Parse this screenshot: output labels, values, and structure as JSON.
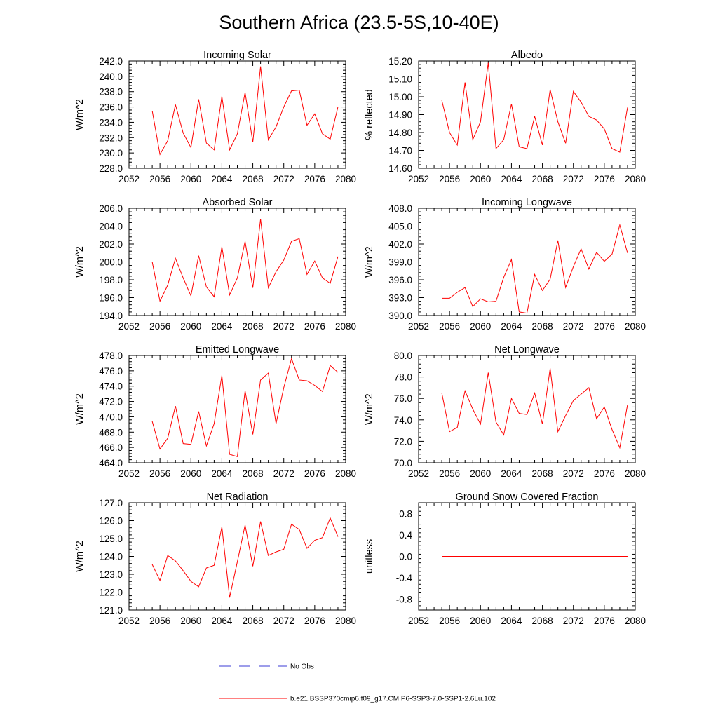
{
  "title": "Southern Africa (23.5-5S,10-40E)",
  "legend": {
    "obs_label": "No Obs",
    "obs_color": "#3b3bd6",
    "model_label": "b.e21.BSSP370cmip6.f09_g17.CMIP6-SSP3-7.0-SSP1-2.6Lu.102",
    "model_color": "#ff0000",
    "placement": "bottom-center"
  },
  "line_color": "#ff0000",
  "chart_data": [
    {
      "type": "line",
      "title": "Incoming Solar",
      "ylabel": "W/m^2",
      "xlim": [
        2052,
        2080
      ],
      "ylim": [
        228.0,
        242.0
      ],
      "xticks": [
        "2052",
        "2056",
        "2060",
        "2064",
        "2068",
        "2072",
        "2076",
        "2080"
      ],
      "yticks": [
        "228.0",
        "230.0",
        "232.0",
        "234.0",
        "236.0",
        "238.0",
        "240.0",
        "242.0"
      ],
      "x": [
        2055,
        2056,
        2057,
        2058,
        2059,
        2060,
        2061,
        2062,
        2063,
        2064,
        2065,
        2066,
        2067,
        2068,
        2069,
        2070,
        2071,
        2072,
        2073,
        2074,
        2075,
        2076,
        2077,
        2078,
        2079
      ],
      "y": [
        235.5,
        229.8,
        231.6,
        236.3,
        232.6,
        230.7,
        237.0,
        231.3,
        230.4,
        237.4,
        230.4,
        232.5,
        237.9,
        231.4,
        241.3,
        231.7,
        233.4,
        236.0,
        238.1,
        238.2,
        233.6,
        235.1,
        232.5,
        231.8,
        236.0
      ]
    },
    {
      "type": "line",
      "title": "Albedo",
      "ylabel": "% reflected",
      "xlim": [
        2052,
        2080
      ],
      "ylim": [
        14.6,
        15.2
      ],
      "xticks": [
        "2052",
        "2056",
        "2060",
        "2064",
        "2068",
        "2072",
        "2076",
        "2080"
      ],
      "yticks": [
        "14.60",
        "14.70",
        "14.80",
        "14.90",
        "15.00",
        "15.10",
        "15.20"
      ],
      "x": [
        2055,
        2056,
        2057,
        2058,
        2059,
        2060,
        2061,
        2062,
        2063,
        2064,
        2065,
        2066,
        2067,
        2068,
        2069,
        2070,
        2071,
        2072,
        2073,
        2074,
        2075,
        2076,
        2077,
        2078,
        2079
      ],
      "y": [
        14.98,
        14.8,
        14.73,
        15.08,
        14.76,
        14.86,
        15.19,
        14.71,
        14.76,
        14.96,
        14.72,
        14.71,
        14.89,
        14.73,
        15.04,
        14.86,
        14.74,
        15.03,
        14.97,
        14.89,
        14.87,
        14.82,
        14.71,
        14.69,
        14.94
      ]
    },
    {
      "type": "line",
      "title": "Absorbed Solar",
      "ylabel": "W/m^2",
      "xlim": [
        2052,
        2080
      ],
      "ylim": [
        194.0,
        206.0
      ],
      "xticks": [
        "2052",
        "2056",
        "2060",
        "2064",
        "2068",
        "2072",
        "2076",
        "2080"
      ],
      "yticks": [
        "194.0",
        "196.0",
        "198.0",
        "200.0",
        "202.0",
        "204.0",
        "206.0"
      ],
      "x": [
        2055,
        2056,
        2057,
        2058,
        2059,
        2060,
        2061,
        2062,
        2063,
        2064,
        2065,
        2066,
        2067,
        2068,
        2069,
        2070,
        2071,
        2072,
        2073,
        2074,
        2075,
        2076,
        2077,
        2078,
        2079
      ],
      "y": [
        200.0,
        195.6,
        197.4,
        200.4,
        198.2,
        196.2,
        200.7,
        197.2,
        196.1,
        201.7,
        196.3,
        198.2,
        202.3,
        197.1,
        204.8,
        197.1,
        198.9,
        200.2,
        202.3,
        202.6,
        198.6,
        200.1,
        198.2,
        197.6,
        200.6
      ]
    },
    {
      "type": "line",
      "title": "Incoming Longwave",
      "ylabel": "W/m^2",
      "xlim": [
        2052,
        2080
      ],
      "ylim": [
        390.0,
        408.0
      ],
      "xticks": [
        "2052",
        "2056",
        "2060",
        "2064",
        "2068",
        "2072",
        "2076",
        "2080"
      ],
      "yticks": [
        "390.0",
        "393.0",
        "396.0",
        "399.0",
        "402.0",
        "405.0",
        "408.0"
      ],
      "x": [
        2055,
        2056,
        2057,
        2058,
        2059,
        2060,
        2061,
        2062,
        2063,
        2064,
        2065,
        2066,
        2067,
        2068,
        2069,
        2070,
        2071,
        2072,
        2073,
        2074,
        2075,
        2076,
        2077,
        2078,
        2079
      ],
      "y": [
        392.9,
        392.9,
        393.9,
        394.7,
        391.5,
        392.8,
        392.3,
        392.4,
        396.4,
        399.4,
        390.6,
        390.4,
        396.9,
        394.2,
        396.1,
        402.6,
        394.7,
        398.2,
        401.2,
        397.8,
        400.6,
        399.1,
        400.3,
        405.2,
        400.5
      ]
    },
    {
      "type": "line",
      "title": "Emitted Longwave",
      "ylabel": "W/m^2",
      "xlim": [
        2052,
        2080
      ],
      "ylim": [
        464.0,
        478.0
      ],
      "xticks": [
        "2052",
        "2056",
        "2060",
        "2064",
        "2068",
        "2072",
        "2076",
        "2080"
      ],
      "yticks": [
        "464.0",
        "466.0",
        "468.0",
        "470.0",
        "472.0",
        "474.0",
        "476.0",
        "478.0"
      ],
      "x": [
        2055,
        2056,
        2057,
        2058,
        2059,
        2060,
        2061,
        2062,
        2063,
        2064,
        2065,
        2066,
        2067,
        2068,
        2069,
        2070,
        2071,
        2072,
        2073,
        2074,
        2075,
        2076,
        2077,
        2078,
        2079
      ],
      "y": [
        469.4,
        465.8,
        467.2,
        471.4,
        466.5,
        466.4,
        470.7,
        466.2,
        469.1,
        475.4,
        465.1,
        464.8,
        473.4,
        467.7,
        474.8,
        475.7,
        469.1,
        473.8,
        477.6,
        474.8,
        474.7,
        474.1,
        473.3,
        476.7,
        475.8
      ]
    },
    {
      "type": "line",
      "title": "Net Longwave",
      "ylabel": "W/m^2",
      "xlim": [
        2052,
        2080
      ],
      "ylim": [
        70.0,
        80.0
      ],
      "xticks": [
        "2052",
        "2056",
        "2060",
        "2064",
        "2068",
        "2072",
        "2076",
        "2080"
      ],
      "yticks": [
        "70.0",
        "72.0",
        "74.0",
        "76.0",
        "78.0",
        "80.0"
      ],
      "x": [
        2055,
        2056,
        2057,
        2058,
        2059,
        2060,
        2061,
        2062,
        2063,
        2064,
        2065,
        2066,
        2067,
        2068,
        2069,
        2070,
        2071,
        2072,
        2073,
        2074,
        2075,
        2076,
        2077,
        2078,
        2079
      ],
      "y": [
        76.5,
        72.9,
        73.3,
        76.7,
        75.0,
        73.6,
        78.4,
        73.8,
        72.6,
        76.0,
        74.6,
        74.5,
        76.5,
        73.6,
        78.8,
        72.9,
        74.4,
        75.8,
        76.4,
        77.0,
        74.1,
        75.2,
        73.1,
        71.4,
        75.4
      ]
    },
    {
      "type": "line",
      "title": "Net Radiation",
      "ylabel": "W/m^2",
      "xlim": [
        2052,
        2080
      ],
      "ylim": [
        121.0,
        127.0
      ],
      "xticks": [
        "2052",
        "2056",
        "2060",
        "2064",
        "2068",
        "2072",
        "2076",
        "2080"
      ],
      "yticks": [
        "121.0",
        "122.0",
        "123.0",
        "124.0",
        "125.0",
        "126.0",
        "127.0"
      ],
      "x": [
        2055,
        2056,
        2057,
        2058,
        2059,
        2060,
        2061,
        2062,
        2063,
        2064,
        2065,
        2066,
        2067,
        2068,
        2069,
        2070,
        2071,
        2072,
        2073,
        2074,
        2075,
        2076,
        2077,
        2078,
        2079
      ],
      "y": [
        123.55,
        122.65,
        124.05,
        123.75,
        123.2,
        122.6,
        122.3,
        123.35,
        123.5,
        125.65,
        121.7,
        123.7,
        125.75,
        123.45,
        125.95,
        124.05,
        124.25,
        124.4,
        125.8,
        125.5,
        124.45,
        124.9,
        125.05,
        126.15,
        125.1
      ]
    },
    {
      "type": "line",
      "title": "Ground Snow Covered Fraction",
      "ylabel": "unitless",
      "xlim": [
        2052,
        2080
      ],
      "ylim": [
        -1.0,
        1.0
      ],
      "xticks": [
        "2052",
        "2056",
        "2060",
        "2064",
        "2068",
        "2072",
        "2076",
        "2080"
      ],
      "yticks": [
        "-0.8",
        "-0.4",
        "0.0",
        "0.4",
        "0.8"
      ],
      "ytick_values": [
        -0.8,
        -0.4,
        0.0,
        0.4,
        0.8
      ],
      "x": [
        2055,
        2056,
        2057,
        2058,
        2059,
        2060,
        2061,
        2062,
        2063,
        2064,
        2065,
        2066,
        2067,
        2068,
        2069,
        2070,
        2071,
        2072,
        2073,
        2074,
        2075,
        2076,
        2077,
        2078,
        2079
      ],
      "y": [
        0,
        0,
        0,
        0,
        0,
        0,
        0,
        0,
        0,
        0,
        0,
        0,
        0,
        0,
        0,
        0,
        0,
        0,
        0,
        0,
        0,
        0,
        0,
        0,
        0
      ]
    }
  ]
}
